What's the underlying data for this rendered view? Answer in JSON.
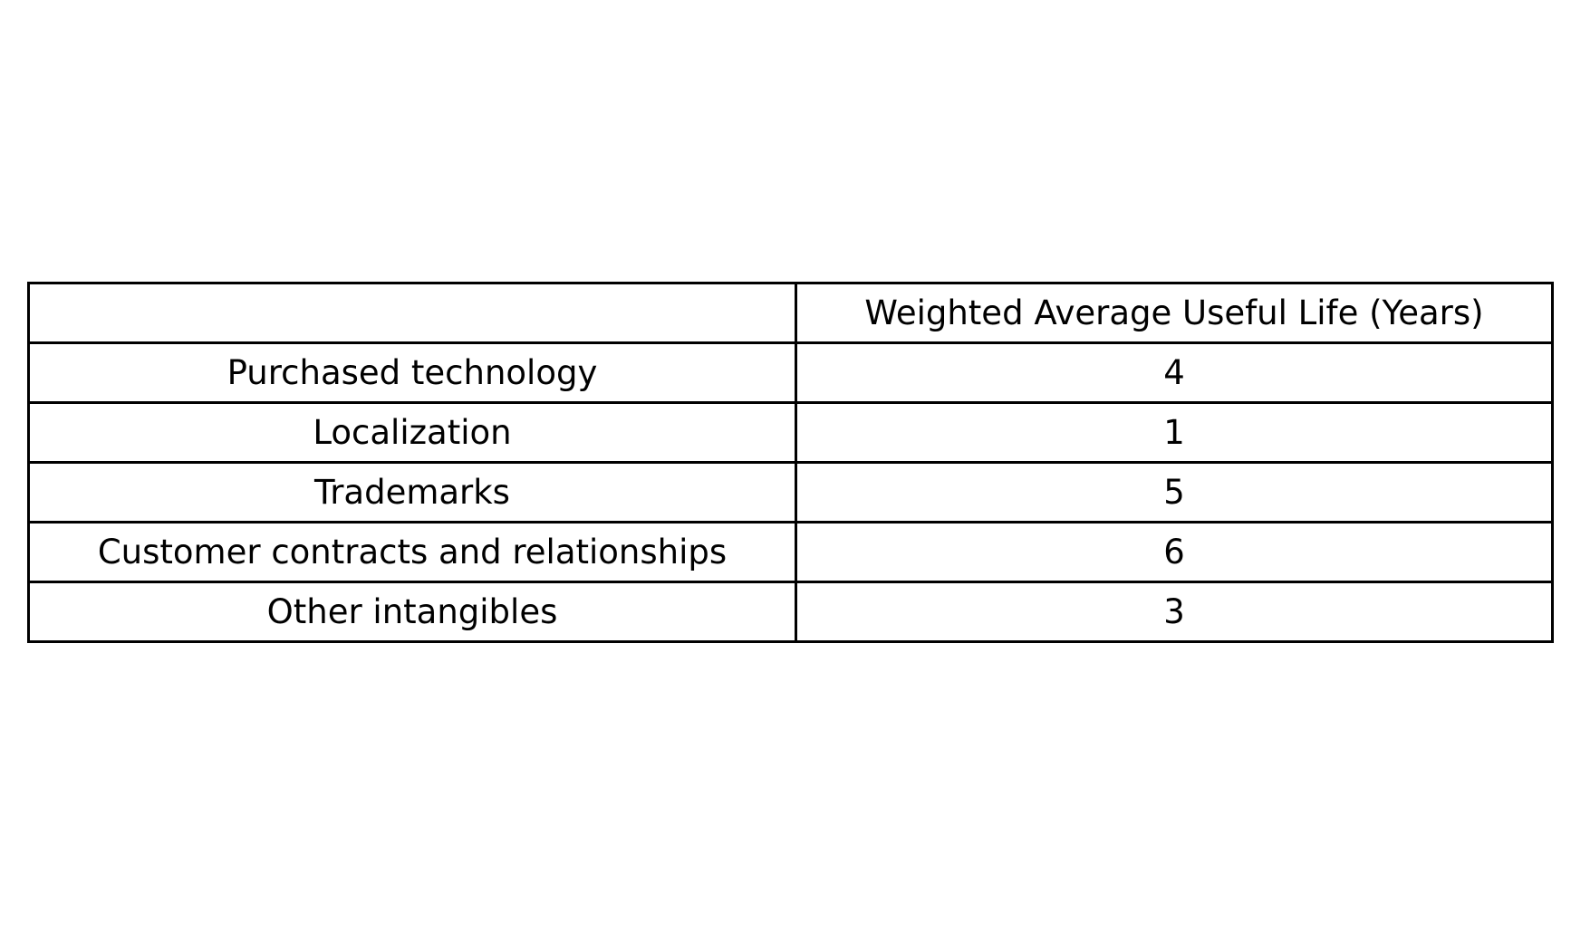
{
  "chart_data": {
    "type": "table",
    "columns": [
      "",
      "Weighted Average Useful Life (Years)"
    ],
    "rows": [
      [
        "Purchased technology",
        "4"
      ],
      [
        "Localization",
        "1"
      ],
      [
        "Trademarks",
        "5"
      ],
      [
        "Customer contracts and relationships",
        "6"
      ],
      [
        "Other intangibles",
        "3"
      ]
    ]
  }
}
